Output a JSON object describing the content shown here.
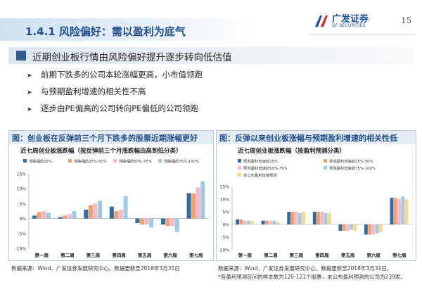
{
  "slide": {
    "title": "1.4.1 风险偏好：需以盈利为底气",
    "page_number": "15",
    "logo": {
      "cn": "广发证券",
      "en": "GF SECURITIES"
    },
    "headline": "近期创业板行情由风险偏好提升逐步转向低估值",
    "bullets": [
      "前期下跌多的公司本轮涨幅更高，小市值领跑",
      "与预期盈利增速的相关性不高",
      "逐步由PE偏高的公司转向PE偏低的公司领跑"
    ]
  },
  "chart1_caption": "图：创业板在反弹前三个月下跌多的股票近期涨幅更好",
  "chart2_caption": "图：反弹以来创业板涨幅与预期盈利增速的相关性低",
  "chart1_source": "数据来源：Wind，广发证券发展研究中心。数据更新至2018年3月31日",
  "chart2_source": "数据来源：Wind，广发证券发展研究中心。数据更新至2018年3月31日。",
  "chart2_note": "*各盈利预测区间的样本数为120-121个股票，未公布盈利预测的公司为239家。",
  "colors": {
    "series1": "#2e6da4",
    "series2": "#f3a070",
    "series3": "#f5b9c8",
    "series4": "#9ccbe3",
    "series5": "#f6d98c"
  },
  "chart_data": [
    {
      "type": "bar",
      "title": "近七周创业板涨跌幅（按反弹前三个月涨跌幅由高到低分类）",
      "categories": [
        "第一周",
        "第二周",
        "第三周",
        "第四周",
        "第五周",
        "第六周",
        "第七周"
      ],
      "ylim": [
        -10,
        15
      ],
      "yticks": [
        "-10%",
        "-5%",
        "0%",
        "5%",
        "10%",
        "15%"
      ],
      "legend_position": "top",
      "series": [
        {
          "name": "涨跌幅前25%",
          "values": [
            1.0,
            0.5,
            3.0,
            4.0,
            -1.5,
            -2.0,
            8.5
          ]
        },
        {
          "name": "涨跌幅前25%-50%",
          "values": [
            2.2,
            1.0,
            4.5,
            2.5,
            -2.0,
            -2.5,
            8.5
          ]
        },
        {
          "name": "涨跌幅前50%-75%",
          "values": [
            2.5,
            1.5,
            5.0,
            3.0,
            -2.0,
            -2.5,
            10.5
          ]
        },
        {
          "name": "涨跌幅前75%-100%",
          "values": [
            2.0,
            2.5,
            6.0,
            7.5,
            -3.0,
            -4.5,
            12.5
          ]
        }
      ]
    },
    {
      "type": "bar",
      "title": "近七周创业板涨跌幅（按盈利预测分类）",
      "categories": [
        "第一周",
        "第二周",
        "第三周",
        "第四周",
        "第五周",
        "第六周",
        "第七周"
      ],
      "ylim": [
        -10,
        15
      ],
      "yticks": [
        "-10%",
        "-5%",
        "0%",
        "5%",
        "10%",
        "15%"
      ],
      "legend_position": "top",
      "series": [
        {
          "name": "预测盈利增速前25%",
          "values": [
            2.0,
            1.5,
            5.0,
            5.0,
            -2.5,
            -4.0,
            10.5
          ]
        },
        {
          "name": "预测盈利增速前25%-50%",
          "values": [
            2.0,
            1.5,
            5.0,
            5.0,
            -2.5,
            -4.0,
            10.5
          ]
        },
        {
          "name": "预测盈利增速前50%-75%",
          "values": [
            1.5,
            1.5,
            5.0,
            5.0,
            -2.5,
            -4.0,
            10.0
          ]
        },
        {
          "name": "预测盈利增速前75%-100%",
          "values": [
            1.5,
            1.5,
            4.5,
            4.5,
            -2.0,
            -3.5,
            11.0
          ]
        },
        {
          "name": "未公布盈利增速预测",
          "values": [
            1.5,
            1.0,
            5.0,
            4.5,
            -2.5,
            -3.0,
            10.0
          ]
        }
      ]
    }
  ]
}
